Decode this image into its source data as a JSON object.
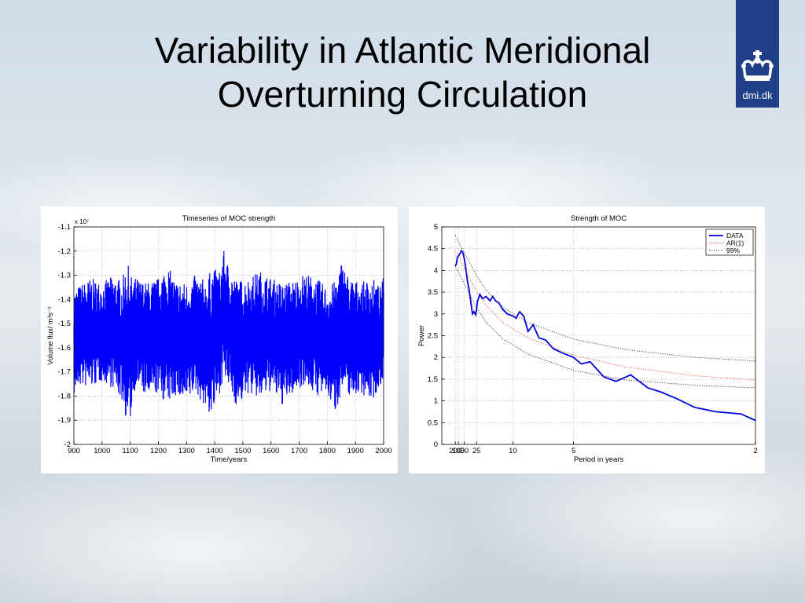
{
  "slide": {
    "title_line1": "Variability in Atlantic Meridional",
    "title_line2": "Overturning Circulation"
  },
  "logo": {
    "text": "dmi.dk",
    "icon": "crown-icon",
    "color": "#1f3f87"
  },
  "chart_data": [
    {
      "type": "line",
      "title": "Timeseries of MOC strength",
      "xlabel": "Time/years",
      "ylabel": "Volume flux/ m³s⁻¹",
      "y_exponent_label": "x 10⁷",
      "xlim": [
        900,
        2000
      ],
      "ylim": [
        -2,
        -1.1
      ],
      "xticks": [
        900,
        1000,
        1100,
        1200,
        1300,
        1400,
        1500,
        1600,
        1700,
        1800,
        1900,
        2000
      ],
      "yticks": [
        -2,
        -1.9,
        -1.8,
        -1.7,
        -1.6,
        -1.5,
        -1.4,
        -1.3,
        -1.2,
        -1.1
      ],
      "ytick_labels": [
        "-2",
        "-1.9",
        "-1.8",
        "-1.7",
        "-1.6",
        "-1.5",
        "-1.4",
        "-1.3",
        "-1.2",
        "-1.1"
      ],
      "grid": true,
      "color": "#0000ff",
      "series_envelope": {
        "x": [
          900,
          920,
          960,
          1000,
          1040,
          1070,
          1090,
          1100,
          1120,
          1160,
          1200,
          1230,
          1260,
          1300,
          1330,
          1370,
          1390,
          1420,
          1430,
          1450,
          1480,
          1520,
          1560,
          1600,
          1640,
          1680,
          1720,
          1760,
          1800,
          1830,
          1850,
          1880,
          1920,
          1960,
          1990,
          2000
        ],
        "max": [
          -1.36,
          -1.34,
          -1.31,
          -1.33,
          -1.3,
          -1.32,
          -1.24,
          -1.3,
          -1.31,
          -1.33,
          -1.31,
          -1.25,
          -1.32,
          -1.33,
          -1.3,
          -1.32,
          -1.27,
          -1.28,
          -1.19,
          -1.26,
          -1.32,
          -1.31,
          -1.28,
          -1.31,
          -1.33,
          -1.32,
          -1.29,
          -1.31,
          -1.35,
          -1.32,
          -1.24,
          -1.31,
          -1.33,
          -1.31,
          -1.35,
          -1.3
        ],
        "min": [
          -1.8,
          -1.76,
          -1.77,
          -1.74,
          -1.77,
          -1.82,
          -1.92,
          -1.9,
          -1.75,
          -1.81,
          -1.79,
          -1.84,
          -1.8,
          -1.84,
          -1.78,
          -1.86,
          -1.89,
          -1.78,
          -1.73,
          -1.77,
          -1.85,
          -1.79,
          -1.82,
          -1.78,
          -1.84,
          -1.79,
          -1.75,
          -1.8,
          -1.8,
          -1.87,
          -1.78,
          -1.8,
          -1.79,
          -1.82,
          -1.76,
          -1.71
        ]
      }
    },
    {
      "type": "line",
      "title": "Strength of MOC",
      "xlabel": "Period in years",
      "ylabel": "Power",
      "xlim": [
        2,
        200
      ],
      "x_scale": "reciprocal",
      "ylim": [
        0,
        5
      ],
      "xticks": [
        200,
        100,
        50,
        25,
        10,
        5,
        2
      ],
      "yticks": [
        0,
        0.5,
        1,
        1.5,
        2,
        2.5,
        3,
        3.5,
        4,
        4.5,
        5
      ],
      "ytick_labels": [
        "0",
        "0.5",
        "1",
        "1.5",
        "2",
        "2.5",
        "3",
        "3.5",
        "4",
        "4.5",
        "5"
      ],
      "grid": true,
      "legend": {
        "position": "top-right",
        "entries": [
          "DATA",
          "AR(1)",
          "99%"
        ]
      },
      "series": [
        {
          "name": "DATA",
          "color": "#0000dd",
          "style": "solid",
          "x": [
            200,
            150,
            120,
            100,
            80,
            67,
            58,
            50,
            45,
            40,
            36,
            33,
            30,
            28,
            26,
            25,
            24,
            22,
            20,
            18,
            16,
            15,
            14,
            13,
            12,
            11,
            10,
            9.5,
            9,
            8.5,
            8,
            7.5,
            7,
            6.5,
            6,
            5.5,
            5,
            4.7,
            4.4,
            4,
            3.7,
            3.4,
            3.1,
            2.9,
            2.7,
            2.5,
            2.3,
            2.1,
            2.0
          ],
          "y": [
            4.1,
            4.15,
            4.3,
            4.33,
            4.38,
            4.45,
            4.42,
            4.25,
            4.05,
            3.75,
            3.55,
            3.3,
            3.0,
            3.05,
            2.98,
            3.1,
            3.3,
            3.45,
            3.35,
            3.4,
            3.3,
            3.4,
            3.3,
            3.25,
            3.1,
            3.0,
            2.95,
            2.9,
            3.05,
            2.95,
            2.6,
            2.75,
            2.45,
            2.4,
            2.2,
            2.1,
            2.0,
            1.85,
            1.9,
            1.55,
            1.45,
            1.6,
            1.3,
            1.2,
            1.05,
            0.85,
            0.75,
            0.7,
            0.55
          ]
        },
        {
          "name": "AR(1)",
          "color": "#ff3b3b",
          "style": "dotted",
          "x": [
            200,
            150,
            100,
            70,
            50,
            35,
            25,
            18,
            12,
            8,
            5,
            3.5,
            2.5,
            2.0
          ],
          "y": [
            4.45,
            4.42,
            4.35,
            4.22,
            4.05,
            3.8,
            3.52,
            3.2,
            2.8,
            2.45,
            2.05,
            1.78,
            1.58,
            1.48
          ]
        },
        {
          "name": "99%",
          "color": "#333333",
          "style": "dotted",
          "x": [
            200,
            150,
            100,
            70,
            50,
            35,
            25,
            18,
            12,
            8,
            5,
            3.5,
            2.5,
            2.0
          ],
          "y": [
            4.8,
            4.76,
            4.68,
            4.55,
            4.4,
            4.18,
            3.88,
            3.55,
            3.15,
            2.8,
            2.42,
            2.18,
            2.0,
            1.92
          ]
        },
        {
          "name": "99% lower",
          "color": "#333333",
          "style": "dotted",
          "x": [
            200,
            150,
            100,
            70,
            50,
            35,
            25,
            18,
            12,
            8,
            5,
            3.5,
            2.5,
            2.0
          ],
          "y": [
            4.1,
            4.06,
            3.98,
            3.85,
            3.68,
            3.45,
            3.15,
            2.82,
            2.42,
            2.08,
            1.7,
            1.48,
            1.36,
            1.3
          ]
        }
      ]
    }
  ]
}
